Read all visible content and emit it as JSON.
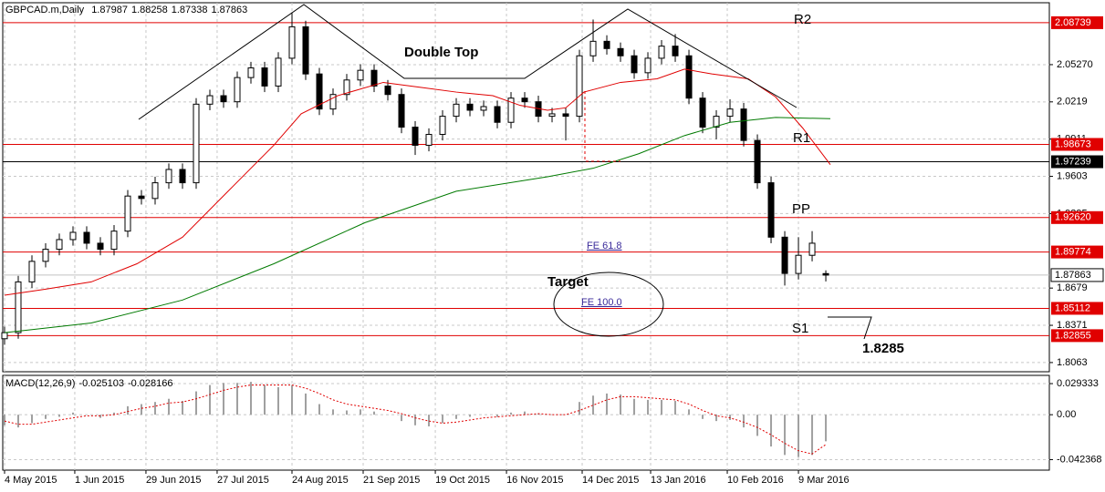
{
  "chart_data": {
    "type": "candlestick",
    "symbol": "GBPCAD.m,Daily",
    "open": [
      1.826,
      1.831,
      1.873,
      1.89,
      1.9,
      1.908,
      1.914,
      1.905,
      1.9,
      1.915,
      1.944,
      1.942,
      1.955,
      1.966,
      1.955,
      2.02,
      2.027,
      2.022,
      2.042,
      2.05,
      2.035,
      2.058,
      2.084,
      2.045,
      2.016,
      2.028,
      2.04,
      2.048,
      2.035,
      2.028,
      2.001,
      1.986,
      1.995,
      2.01,
      2.02,
      2.015,
      2.018,
      2.005,
      2.025,
      2.022,
      2.01,
      2.012,
      2.01,
      2.06,
      2.072,
      2.066,
      2.06,
      2.046,
      2.058,
      2.068,
      2.06,
      2.025,
      2.001,
      2.01,
      2.016,
      1.99,
      1.955,
      1.91,
      1.88,
      1.895,
      1.87987
    ],
    "high": [
      1.836,
      1.878,
      1.895,
      1.905,
      1.913,
      1.919,
      1.919,
      1.91,
      1.92,
      1.949,
      1.949,
      1.96,
      1.971,
      1.971,
      2.025,
      2.032,
      2.032,
      2.047,
      2.055,
      2.055,
      2.063,
      2.096,
      2.089,
      2.05,
      2.033,
      2.045,
      2.053,
      2.053,
      2.04,
      2.033,
      2.006,
      2.0,
      2.015,
      2.025,
      2.025,
      2.023,
      2.023,
      2.03,
      2.03,
      2.027,
      2.017,
      2.017,
      2.065,
      2.09,
      2.077,
      2.071,
      2.065,
      2.063,
      2.073,
      2.078,
      2.065,
      2.03,
      2.015,
      2.024,
      2.021,
      1.995,
      1.96,
      1.915,
      1.91,
      1.915,
      1.88258
    ],
    "low": [
      1.821,
      1.826,
      1.868,
      1.885,
      1.895,
      1.903,
      1.9,
      1.895,
      1.895,
      1.91,
      1.937,
      1.937,
      1.95,
      1.95,
      1.95,
      2.015,
      2.017,
      2.017,
      2.037,
      2.03,
      2.03,
      2.053,
      2.04,
      2.011,
      2.011,
      2.023,
      2.035,
      2.03,
      2.023,
      1.996,
      1.978,
      1.981,
      1.99,
      2.005,
      2.01,
      2.01,
      2.0,
      2.0,
      2.017,
      2.005,
      2.005,
      1.99,
      2.005,
      2.055,
      2.061,
      2.055,
      2.041,
      2.041,
      2.053,
      2.055,
      2.02,
      1.996,
      1.991,
      2.005,
      1.985,
      1.95,
      1.905,
      1.87,
      1.875,
      1.89,
      1.87338
    ],
    "close": [
      1.831,
      1.873,
      1.89,
      1.9,
      1.908,
      1.914,
      1.905,
      1.9,
      1.915,
      1.944,
      1.942,
      1.955,
      1.966,
      1.955,
      2.02,
      2.027,
      2.022,
      2.042,
      2.05,
      2.035,
      2.058,
      2.084,
      2.045,
      2.016,
      2.028,
      2.04,
      2.048,
      2.035,
      2.028,
      2.001,
      1.986,
      1.995,
      2.01,
      2.02,
      2.015,
      2.018,
      2.005,
      2.025,
      2.022,
      2.01,
      2.012,
      2.01,
      2.06,
      2.072,
      2.066,
      2.06,
      2.046,
      2.058,
      2.068,
      2.06,
      2.025,
      2.001,
      2.01,
      2.016,
      1.99,
      1.955,
      1.91,
      1.88,
      1.895,
      1.905,
      1.87863
    ],
    "series": [
      {
        "color": "#e00000",
        "x": [
          0,
          3,
          6.33,
          9.67,
          13,
          16.33,
          19.67,
          21.67,
          24.33,
          27.67,
          30.33,
          33,
          35.67,
          37.67,
          39.67,
          41,
          42.33,
          45,
          47.67,
          49.67,
          51.67,
          54.33,
          56.33,
          58.33,
          60.33
        ],
        "values": [
          1.862,
          1.867,
          1.873,
          1.888,
          1.91,
          1.948,
          1.986,
          2.012,
          2.027,
          2.038,
          2.034,
          2.03,
          2.027,
          2.019,
          2.015,
          2.017,
          2.03,
          2.038,
          2.041,
          2.049,
          2.045,
          2.041,
          2.026,
          2.0,
          1.97
        ]
      },
      {
        "color": "#007a00",
        "x": [
          0,
          6.33,
          13,
          19.67,
          26.33,
          33,
          39.67,
          43,
          46.33,
          49.67,
          53,
          56.33,
          60.33
        ],
        "values": [
          1.831,
          1.839,
          1.858,
          1.888,
          1.922,
          1.948,
          1.96,
          1.967,
          1.979,
          1.994,
          2.005,
          2.009,
          2.008
        ]
      }
    ],
    "levels": [
      {
        "value": 2.08739,
        "label": "2.08739",
        "color": "#e00000"
      },
      {
        "value": 1.98673,
        "label": "1.98673",
        "color": "#e00000"
      },
      {
        "value": 1.97239,
        "label": "1.97239",
        "color": "#000000"
      },
      {
        "value": 1.9262,
        "label": "1.92620",
        "color": "#e00000"
      },
      {
        "value": 1.89774,
        "label": "1.89774",
        "color": "#e00000"
      },
      {
        "value": 1.85112,
        "label": "1.85112",
        "color": "#e00000"
      },
      {
        "value": 1.82855,
        "label": "1.82855",
        "color": "#e00000"
      }
    ],
    "ylim": [
      1.7987,
      2.1039
    ],
    "yticks": [
      {
        "value": 2.0527,
        "label": "2.05270"
      },
      2.0219,
      1.9911,
      1.9603,
      1.9295,
      1.8679,
      1.8371,
      1.8063
    ],
    "xlim": [
      -0.133,
      76.33
    ],
    "xticks": [
      {
        "value": 0,
        "label": "4 May 2015"
      },
      {
        "value": 5.13,
        "label": "1 Jun 2015"
      },
      {
        "value": 10.33,
        "label": "29 Jun 2015"
      },
      {
        "value": 15.53,
        "label": "27 Jul 2015"
      },
      {
        "value": 21,
        "label": "24 Aug 2015"
      },
      {
        "value": 26.2,
        "label": "21 Sep 2015"
      },
      {
        "value": 31.47,
        "label": "19 Oct 2015"
      },
      {
        "value": 36.67,
        "label": "16 Nov 2015"
      },
      {
        "value": 42.2,
        "label": "14 Dec 2015"
      },
      {
        "value": 47.2,
        "label": "13 Jan 2016"
      },
      {
        "value": 52.8,
        "label": "10 Feb 2016"
      },
      {
        "value": 58,
        "label": "9 Mar 2016"
      }
    ],
    "grid": true,
    "annotations": {
      "r2": "R2",
      "r1": "R1",
      "pp": "PP",
      "s1": "S1",
      "double_top": "Double Top",
      "target": "Target",
      "fe_618": "FE 61.8",
      "fe_100": "FE 100.0",
      "target_price": 1.8285
    },
    "macd": {
      "name": "MACD(12,26,9)",
      "histogram": [
        -0.01,
        -0.012,
        -0.008,
        -0.004,
        -0.002,
        0.002,
        0.0,
        -0.003,
        0.002,
        0.008,
        0.01,
        0.012,
        0.015,
        0.013,
        0.022,
        0.028,
        0.03,
        0.03,
        0.031,
        0.028,
        0.026,
        0.028,
        0.02,
        0.01,
        0.005,
        0.004,
        0.005,
        0.003,
        0.0,
        -0.006,
        -0.01,
        -0.011,
        -0.008,
        -0.004,
        -0.002,
        0.0,
        -0.002,
        0.002,
        0.003,
        0.001,
        0.0,
        0.0,
        0.012,
        0.018,
        0.02,
        0.019,
        0.015,
        0.014,
        0.014,
        0.013,
        0.005,
        -0.004,
        -0.006,
        -0.005,
        -0.012,
        -0.02,
        -0.03,
        -0.038,
        -0.04,
        -0.038,
        -0.025103
      ],
      "signal": [
        -0.006,
        -0.009,
        -0.009,
        -0.007,
        -0.005,
        -0.003,
        -0.001,
        -0.001,
        0.0,
        0.003,
        0.006,
        0.008,
        0.011,
        0.012,
        0.015,
        0.019,
        0.023,
        0.026,
        0.028,
        0.028,
        0.028,
        0.028,
        0.025,
        0.02,
        0.014,
        0.01,
        0.008,
        0.006,
        0.004,
        0.001,
        -0.003,
        -0.006,
        -0.008,
        -0.007,
        -0.005,
        -0.003,
        -0.002,
        -0.001,
        0.0,
        0.001,
        0.0,
        0.0,
        0.004,
        0.009,
        0.014,
        0.017,
        0.017,
        0.016,
        0.015,
        0.014,
        0.01,
        0.004,
        -0.001,
        -0.003,
        -0.007,
        -0.012,
        -0.019,
        -0.027,
        -0.034,
        -0.037,
        -0.028166
      ],
      "hist_color": "#a0a0a0",
      "signal_color": "#e00000",
      "ylim": [
        -0.0523,
        0.0371
      ],
      "yticks": [
        0.029333,
        {
          "value": 0,
          "label": "0.00"
        },
        -0.042368
      ]
    }
  }
}
